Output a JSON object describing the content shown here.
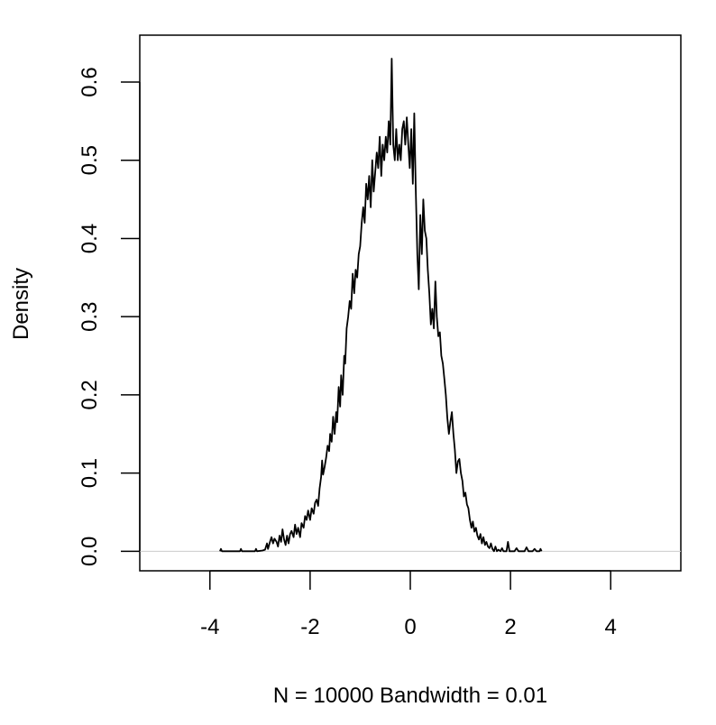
{
  "chart_data": {
    "type": "line",
    "title": "",
    "xlabel": "N = 10000   Bandwidth = 0.01",
    "ylabel": "Density",
    "xlim": [
      -5.4,
      5.4
    ],
    "ylim": [
      -0.025,
      0.66
    ],
    "x_ticks": [
      -4,
      -2,
      0,
      2,
      4
    ],
    "y_ticks": [
      0.0,
      0.1,
      0.2,
      0.3,
      0.4,
      0.5,
      0.6
    ],
    "x_tick_labels": [
      "-4",
      "-2",
      "0",
      "2",
      "4"
    ],
    "y_tick_labels": [
      "0.0",
      "0.1",
      "0.2",
      "0.3",
      "0.4",
      "0.5",
      "0.6"
    ],
    "grid": false,
    "baseline": 0,
    "series": [
      {
        "points": [
          [
            -3.8,
            0.0
          ],
          [
            -3.78,
            0.003
          ],
          [
            -3.76,
            0.0
          ],
          [
            -3.4,
            0.0
          ],
          [
            -3.38,
            0.003
          ],
          [
            -3.36,
            0.0
          ],
          [
            -3.1,
            0.0
          ],
          [
            -3.08,
            0.003
          ],
          [
            -3.06,
            0.0
          ],
          [
            -2.95,
            0.001
          ],
          [
            -2.9,
            0.002
          ],
          [
            -2.86,
            0.01
          ],
          [
            -2.84,
            0.003
          ],
          [
            -2.8,
            0.012
          ],
          [
            -2.77,
            0.018
          ],
          [
            -2.74,
            0.01
          ],
          [
            -2.71,
            0.016
          ],
          [
            -2.67,
            0.012
          ],
          [
            -2.64,
            0.006
          ],
          [
            -2.61,
            0.02
          ],
          [
            -2.58,
            0.012
          ],
          [
            -2.55,
            0.028
          ],
          [
            -2.52,
            0.015
          ],
          [
            -2.49,
            0.008
          ],
          [
            -2.46,
            0.02
          ],
          [
            -2.43,
            0.01
          ],
          [
            -2.4,
            0.022
          ],
          [
            -2.37,
            0.026
          ],
          [
            -2.33,
            0.018
          ],
          [
            -2.3,
            0.034
          ],
          [
            -2.27,
            0.022
          ],
          [
            -2.24,
            0.03
          ],
          [
            -2.2,
            0.018
          ],
          [
            -2.17,
            0.036
          ],
          [
            -2.13,
            0.03
          ],
          [
            -2.1,
            0.045
          ],
          [
            -2.07,
            0.04
          ],
          [
            -2.04,
            0.052
          ],
          [
            -2.0,
            0.04
          ],
          [
            -1.97,
            0.055
          ],
          [
            -1.93,
            0.048
          ],
          [
            -1.9,
            0.062
          ],
          [
            -1.87,
            0.066
          ],
          [
            -1.84,
            0.058
          ],
          [
            -1.81,
            0.08
          ],
          [
            -1.78,
            0.095
          ],
          [
            -1.76,
            0.116
          ],
          [
            -1.74,
            0.098
          ],
          [
            -1.71,
            0.108
          ],
          [
            -1.68,
            0.12
          ],
          [
            -1.65,
            0.135
          ],
          [
            -1.62,
            0.128
          ],
          [
            -1.6,
            0.15
          ],
          [
            -1.57,
            0.14
          ],
          [
            -1.54,
            0.172
          ],
          [
            -1.51,
            0.15
          ],
          [
            -1.48,
            0.178
          ],
          [
            -1.46,
            0.165
          ],
          [
            -1.43,
            0.21
          ],
          [
            -1.4,
            0.185
          ],
          [
            -1.38,
            0.225
          ],
          [
            -1.35,
            0.2
          ],
          [
            -1.32,
            0.25
          ],
          [
            -1.3,
            0.24
          ],
          [
            -1.27,
            0.285
          ],
          [
            -1.24,
            0.3
          ],
          [
            -1.21,
            0.32
          ],
          [
            -1.18,
            0.31
          ],
          [
            -1.15,
            0.355
          ],
          [
            -1.12,
            0.33
          ],
          [
            -1.09,
            0.36
          ],
          [
            -1.06,
            0.35
          ],
          [
            -1.03,
            0.38
          ],
          [
            -1.0,
            0.39
          ],
          [
            -0.97,
            0.42
          ],
          [
            -0.94,
            0.44
          ],
          [
            -0.91,
            0.42
          ],
          [
            -0.88,
            0.47
          ],
          [
            -0.85,
            0.45
          ],
          [
            -0.82,
            0.48
          ],
          [
            -0.79,
            0.44
          ],
          [
            -0.76,
            0.5
          ],
          [
            -0.73,
            0.46
          ],
          [
            -0.7,
            0.485
          ],
          [
            -0.67,
            0.51
          ],
          [
            -0.64,
            0.49
          ],
          [
            -0.61,
            0.53
          ],
          [
            -0.58,
            0.48
          ],
          [
            -0.55,
            0.52
          ],
          [
            -0.52,
            0.5
          ],
          [
            -0.49,
            0.53
          ],
          [
            -0.46,
            0.51
          ],
          [
            -0.43,
            0.55
          ],
          [
            -0.4,
            0.52
          ],
          [
            -0.37,
            0.63
          ],
          [
            -0.34,
            0.52
          ],
          [
            -0.31,
            0.5
          ],
          [
            -0.28,
            0.54
          ],
          [
            -0.25,
            0.5
          ],
          [
            -0.22,
            0.52
          ],
          [
            -0.19,
            0.5
          ],
          [
            -0.16,
            0.54
          ],
          [
            -0.13,
            0.55
          ],
          [
            -0.1,
            0.52
          ],
          [
            -0.07,
            0.555
          ],
          [
            -0.04,
            0.52
          ],
          [
            -0.01,
            0.49
          ],
          [
            0.02,
            0.54
          ],
          [
            0.05,
            0.47
          ],
          [
            0.08,
            0.56
          ],
          [
            0.11,
            0.46
          ],
          [
            0.14,
            0.38
          ],
          [
            0.17,
            0.335
          ],
          [
            0.2,
            0.43
          ],
          [
            0.23,
            0.38
          ],
          [
            0.26,
            0.45
          ],
          [
            0.29,
            0.41
          ],
          [
            0.32,
            0.4
          ],
          [
            0.35,
            0.36
          ],
          [
            0.38,
            0.33
          ],
          [
            0.41,
            0.29
          ],
          [
            0.44,
            0.31
          ],
          [
            0.47,
            0.285
          ],
          [
            0.5,
            0.345
          ],
          [
            0.53,
            0.3
          ],
          [
            0.56,
            0.275
          ],
          [
            0.59,
            0.28
          ],
          [
            0.62,
            0.25
          ],
          [
            0.65,
            0.24
          ],
          [
            0.68,
            0.22
          ],
          [
            0.71,
            0.2
          ],
          [
            0.74,
            0.17
          ],
          [
            0.77,
            0.15
          ],
          [
            0.8,
            0.165
          ],
          [
            0.83,
            0.178
          ],
          [
            0.86,
            0.15
          ],
          [
            0.89,
            0.13
          ],
          [
            0.92,
            0.1
          ],
          [
            0.95,
            0.115
          ],
          [
            0.98,
            0.118
          ],
          [
            1.01,
            0.1
          ],
          [
            1.04,
            0.09
          ],
          [
            1.07,
            0.07
          ],
          [
            1.1,
            0.075
          ],
          [
            1.13,
            0.06
          ],
          [
            1.16,
            0.055
          ],
          [
            1.19,
            0.04
          ],
          [
            1.22,
            0.03
          ],
          [
            1.25,
            0.038
          ],
          [
            1.28,
            0.025
          ],
          [
            1.31,
            0.03
          ],
          [
            1.34,
            0.02
          ],
          [
            1.37,
            0.015
          ],
          [
            1.4,
            0.022
          ],
          [
            1.43,
            0.01
          ],
          [
            1.46,
            0.018
          ],
          [
            1.49,
            0.008
          ],
          [
            1.52,
            0.012
          ],
          [
            1.55,
            0.006
          ],
          [
            1.58,
            0.004
          ],
          [
            1.61,
            0.01
          ],
          [
            1.64,
            0.003
          ],
          [
            1.67,
            0.0
          ],
          [
            1.7,
            0.006
          ],
          [
            1.73,
            0.0
          ],
          [
            1.76,
            0.002
          ],
          [
            1.8,
            0.0
          ],
          [
            1.83,
            0.004
          ],
          [
            1.86,
            0.0
          ],
          [
            1.92,
            0.0
          ],
          [
            1.95,
            0.012
          ],
          [
            1.98,
            0.0
          ],
          [
            2.08,
            0.0
          ],
          [
            2.12,
            0.004
          ],
          [
            2.16,
            0.0
          ],
          [
            2.28,
            0.0
          ],
          [
            2.32,
            0.005
          ],
          [
            2.36,
            0.0
          ],
          [
            2.44,
            0.0
          ],
          [
            2.48,
            0.003
          ],
          [
            2.52,
            0.0
          ],
          [
            2.58,
            0.0
          ],
          [
            2.6,
            0.003
          ],
          [
            2.62,
            0.0
          ]
        ]
      }
    ]
  }
}
